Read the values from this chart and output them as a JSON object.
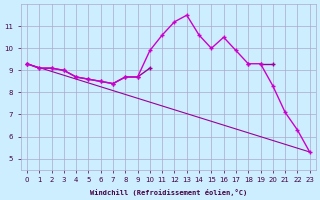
{
  "x": [
    0,
    1,
    2,
    3,
    4,
    5,
    6,
    7,
    8,
    9,
    10,
    11,
    12,
    13,
    14,
    15,
    16,
    17,
    18,
    19,
    20,
    21,
    22,
    23
  ],
  "line1": [
    9.3,
    9.1,
    9.1,
    9.0,
    8.7,
    8.6,
    8.5,
    8.4,
    8.7,
    8.7,
    9.1,
    null,
    null,
    null,
    null,
    null,
    null,
    null,
    null,
    9.3,
    9.3,
    null,
    null,
    null
  ],
  "line2": [
    9.3,
    9.1,
    9.1,
    9.0,
    8.7,
    8.6,
    8.5,
    8.4,
    8.7,
    8.7,
    9.9,
    10.6,
    11.2,
    11.5,
    10.6,
    10.0,
    10.5,
    9.9,
    9.3,
    null,
    null,
    null,
    null,
    null
  ],
  "line3": [
    9.3,
    null,
    null,
    null,
    null,
    null,
    null,
    null,
    null,
    null,
    null,
    null,
    null,
    null,
    null,
    null,
    null,
    null,
    9.3,
    9.3,
    8.3,
    7.1,
    6.3,
    5.3
  ],
  "line4_x": [
    0,
    23
  ],
  "line4_y": [
    9.3,
    5.3
  ],
  "background_color": "#cceeff",
  "grid_color": "#aaaacc",
  "line_color": "#990099",
  "line_color2": "#cc00cc",
  "xlabel": "Windchill (Refroidissement éolien,°C)",
  "ylim": [
    4.5,
    12.0
  ],
  "xlim": [
    -0.5,
    23.5
  ],
  "yticks": [
    5,
    6,
    7,
    8,
    9,
    10,
    11
  ],
  "xticks": [
    0,
    1,
    2,
    3,
    4,
    5,
    6,
    7,
    8,
    9,
    10,
    11,
    12,
    13,
    14,
    15,
    16,
    17,
    18,
    19,
    20,
    21,
    22,
    23
  ]
}
